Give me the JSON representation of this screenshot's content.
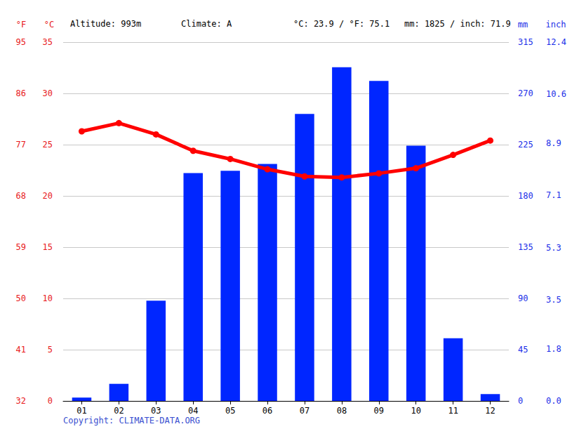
{
  "chart_data": {
    "type": "bar",
    "annotations": [
      "Altitude: 993m",
      "Climate: A",
      "°C: 23.9 / °F: 75.1",
      "mm: 1825 / inch: 71.9",
      "Copyright: CLIMATE-DATA.ORG"
    ],
    "categories": [
      "01",
      "02",
      "03",
      "04",
      "05",
      "06",
      "07",
      "08",
      "09",
      "10",
      "11",
      "12"
    ],
    "series": [
      {
        "type": "bar",
        "axis": "y2",
        "color": "#0026ff",
        "values": [
          3,
          15,
          88,
          200,
          202,
          208,
          252,
          293,
          281,
          224,
          55,
          6
        ]
      },
      {
        "type": "line",
        "axis": "y",
        "color": "#ff0000",
        "marker": "circle",
        "values": [
          26.3,
          27.1,
          26.0,
          24.4,
          23.6,
          22.6,
          21.9,
          21.8,
          22.2,
          22.7,
          24.0,
          25.4
        ]
      }
    ],
    "y_label": "°C",
    "ylim": [
      0,
      35
    ],
    "yticks": [
      0,
      5,
      10,
      15,
      20,
      25,
      30,
      35
    ],
    "y2_label": "mm",
    "y2lim": [
      0,
      315
    ],
    "y2ticks": [
      0,
      45,
      90,
      135,
      180,
      225,
      270,
      315
    ],
    "y3_label": "°F",
    "y3lim": [
      32,
      95
    ],
    "y3ticks": [
      32,
      41,
      50,
      59,
      68,
      77,
      86,
      95
    ],
    "y4_label": "inch",
    "y4lim": [
      0,
      12.4
    ],
    "y4ticks": [
      {
        "value": 0,
        "label": "0.0"
      },
      1.8,
      3.5,
      5.3,
      7.1,
      8.9,
      10.6,
      12.4
    ],
    "grid": true
  }
}
